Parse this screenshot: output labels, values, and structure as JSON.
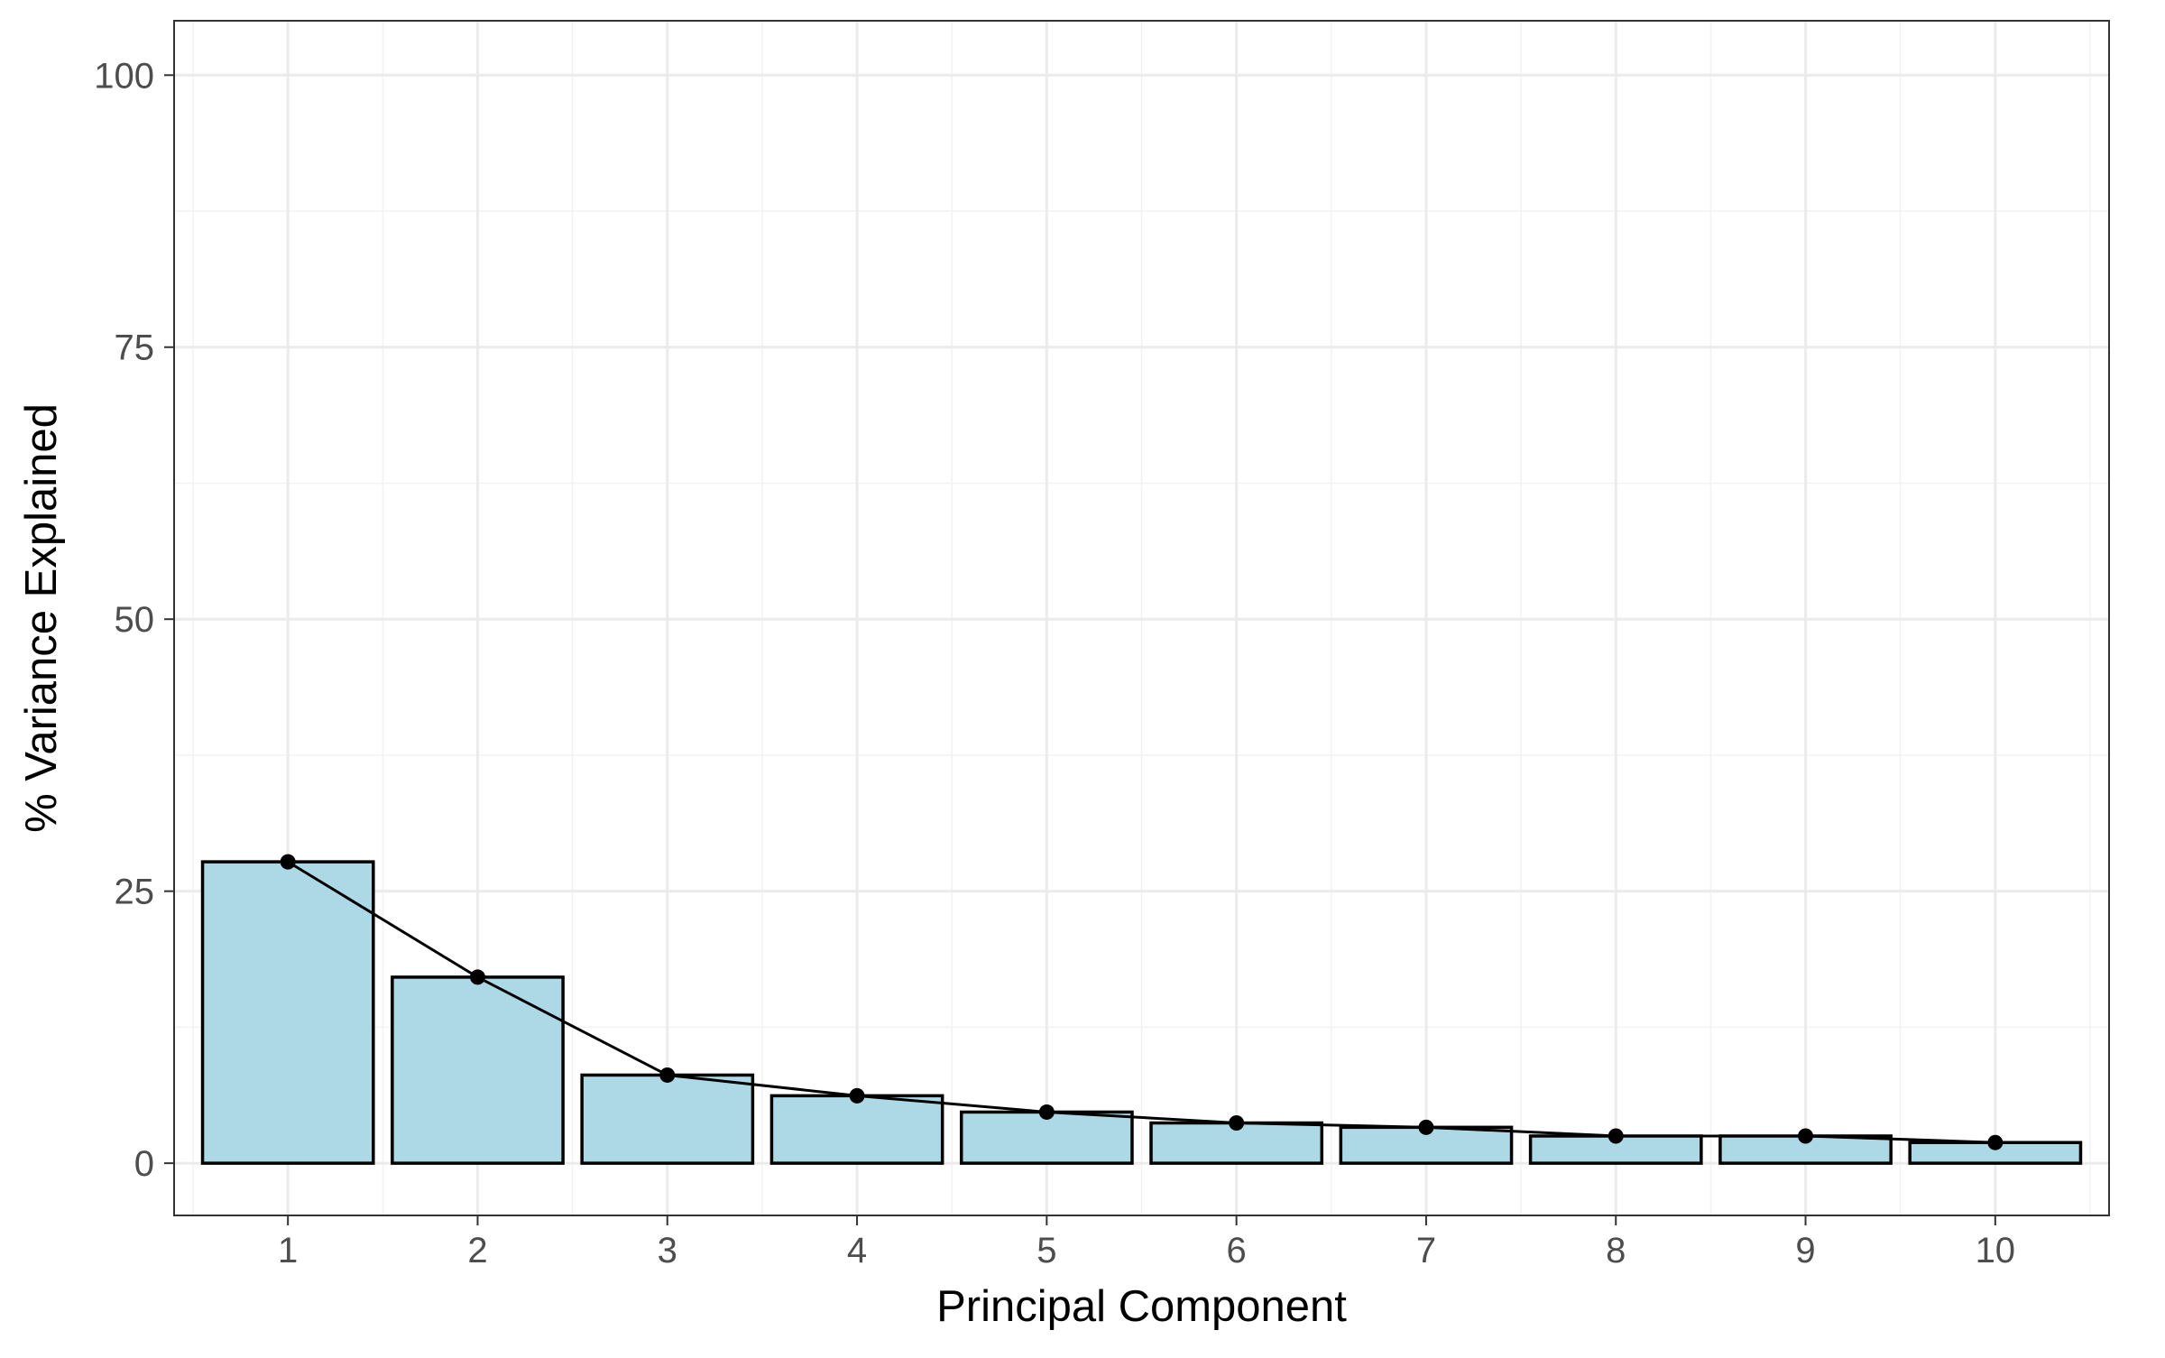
{
  "chart_data": {
    "type": "bar",
    "xlabel": "Principal Component",
    "ylabel": "% Variance Explained",
    "categories": [
      "1",
      "2",
      "3",
      "4",
      "5",
      "6",
      "7",
      "8",
      "9",
      "10"
    ],
    "values": [
      27.7,
      17.1,
      8.1,
      6.2,
      4.7,
      3.7,
      3.3,
      2.5,
      2.5,
      1.9
    ],
    "line_overlay": true,
    "point_markers": true,
    "ylim": [
      -4.8,
      105
    ],
    "yticks": [
      0,
      25,
      50,
      75,
      100
    ],
    "ytick_labels": [
      "0",
      "25",
      "50",
      "75",
      "100"
    ],
    "grid": true,
    "legend": "none",
    "colors": {
      "bar_fill": "#add8e6",
      "bar_stroke": "#000000",
      "line": "#000000",
      "point": "#000000",
      "grid_major": "#ebebeb",
      "grid_minor": "#f2f2f2",
      "panel_border": "#333333",
      "tick_text": "#4d4d4d"
    }
  }
}
